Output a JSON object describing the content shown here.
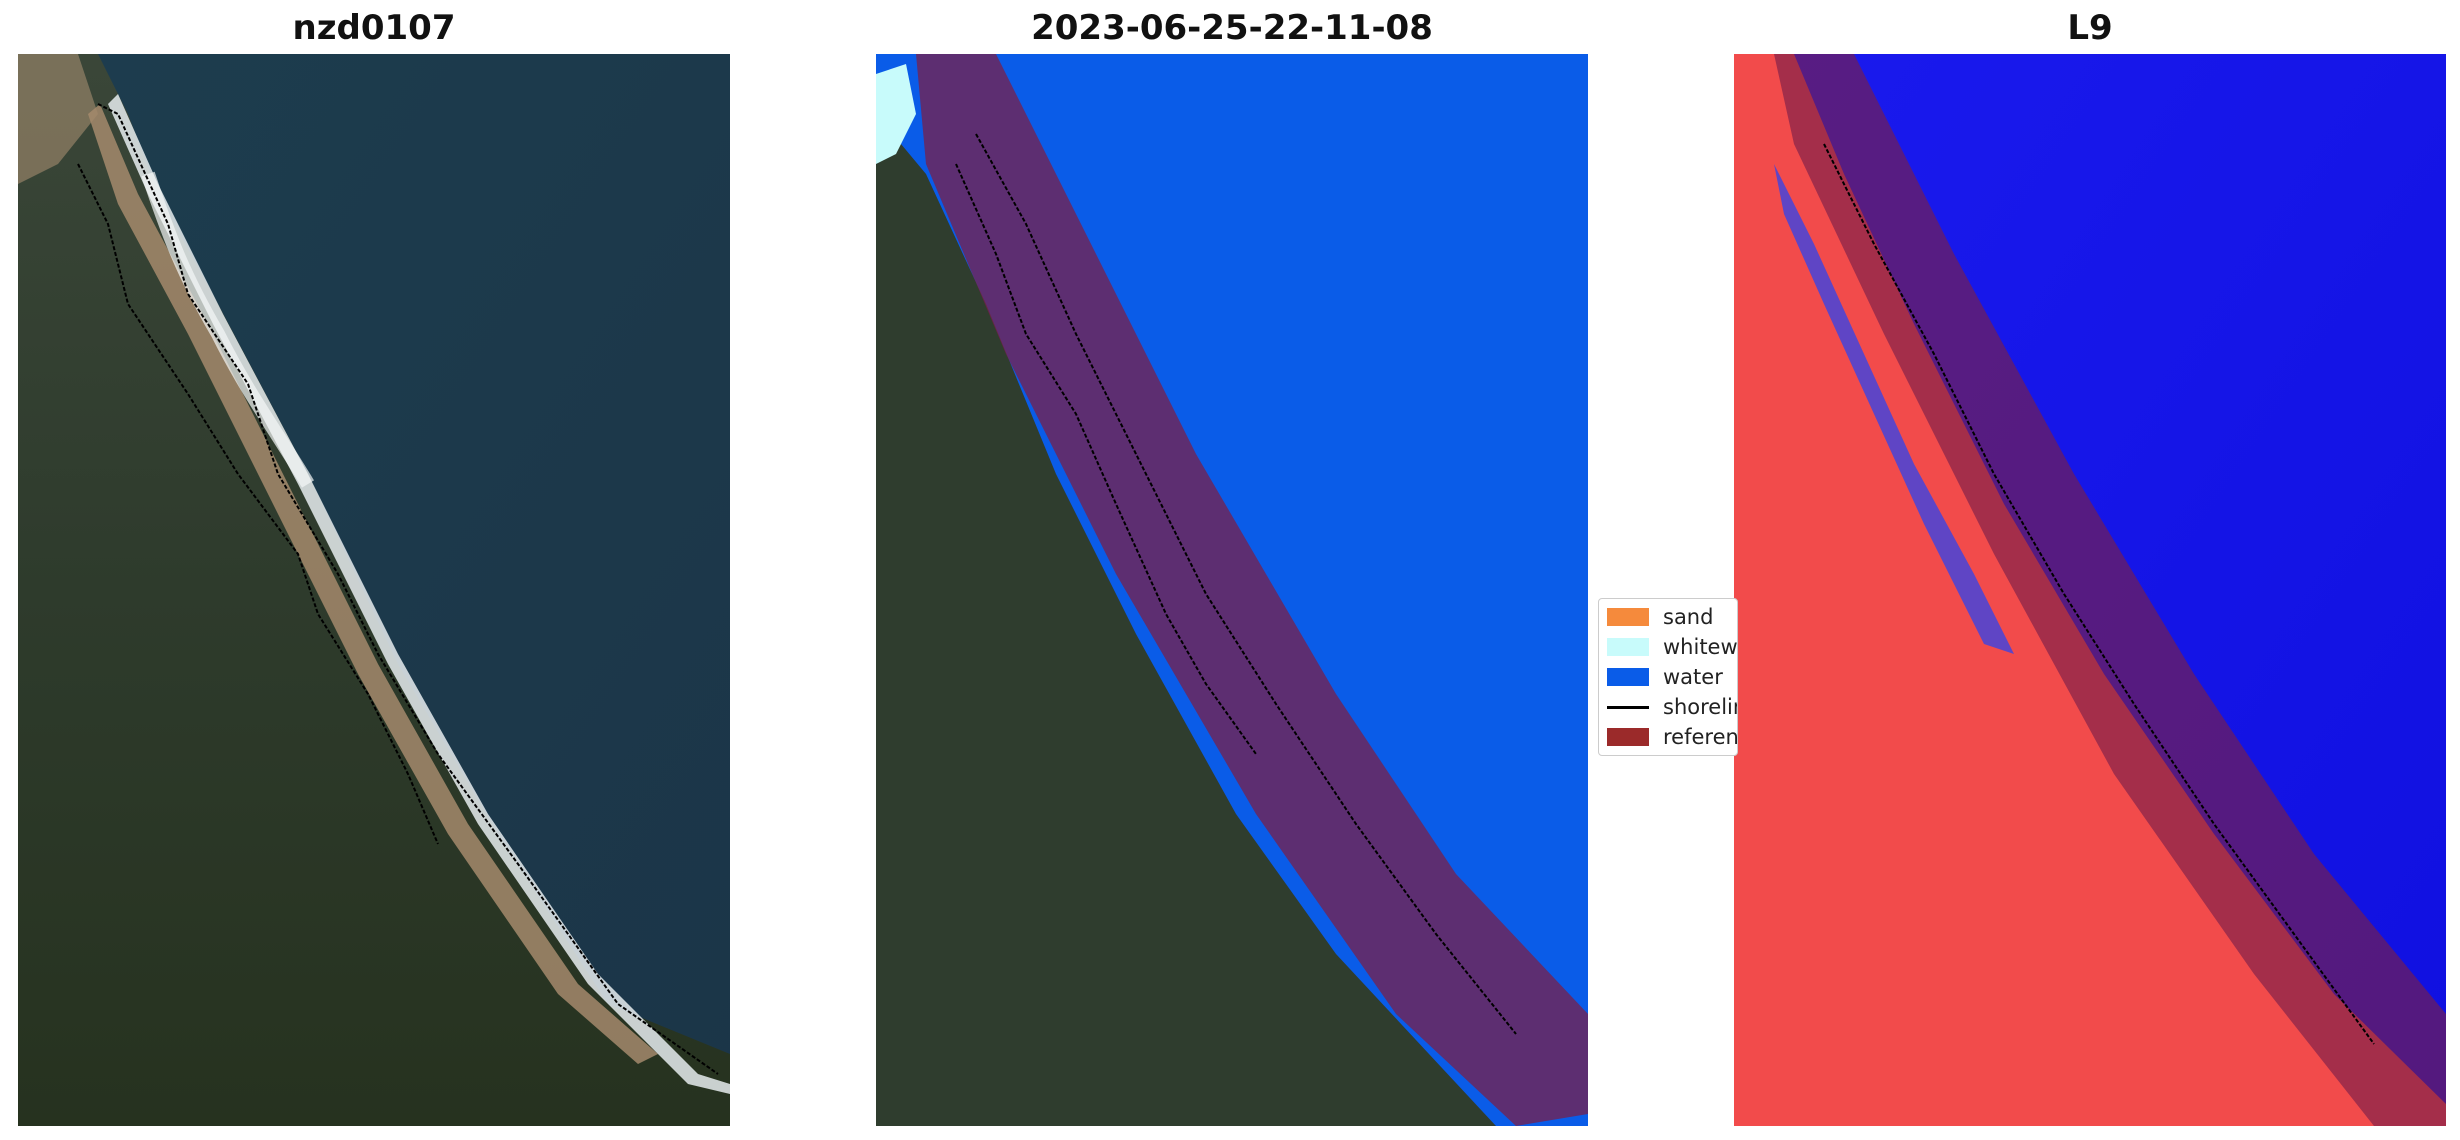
{
  "panels": {
    "left": {
      "title": "nzd0107"
    },
    "middle": {
      "title": "2023-06-25-22-11-08"
    },
    "right": {
      "title": "L9"
    }
  },
  "legend": {
    "items": [
      {
        "label": "sand",
        "color": "#f58a3c",
        "kind": "patch"
      },
      {
        "label": "whitewater",
        "color": "#c8fbfb",
        "kind": "patch"
      },
      {
        "label": "water",
        "color": "#0a5ce8",
        "kind": "patch"
      },
      {
        "label": "shoreline",
        "color": "#000000",
        "kind": "line"
      },
      {
        "label": "reference shoreline buffer",
        "color": "#9b2a2a",
        "kind": "patch"
      }
    ]
  },
  "colors": {
    "ocean": "#1b3b4f",
    "land": "#2f3d2e",
    "beach": "#c8a98a",
    "surf": "#e8eef2",
    "water_class": "#0a5ce8",
    "buffer_overlay": "#7a1f4a",
    "index_high": "#f24b4b",
    "index_low": "#1a1aee"
  }
}
